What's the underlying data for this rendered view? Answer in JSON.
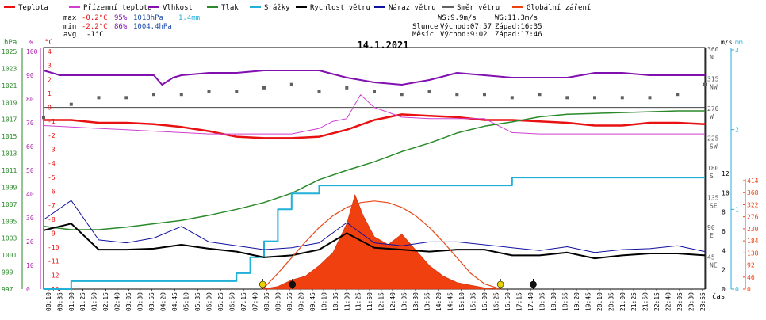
{
  "chart_data": {
    "type": "line",
    "title": "14.1.2021",
    "legend": [
      {
        "label": "Teplota",
        "color": "#e81010"
      },
      {
        "label": "Přízemní teplota",
        "color": "#d040d0"
      },
      {
        "label": "Vlhkost",
        "color": "#8010b0"
      },
      {
        "label": "Tlak",
        "color": "#2a8a2a"
      },
      {
        "label": "Srážky",
        "color": "#20b0d8"
      },
      {
        "label": "Rychlost větru",
        "color": "#000000"
      },
      {
        "label": "Náraz větru",
        "color": "#1010a0"
      },
      {
        "label": "Směr větru",
        "color": "#606060"
      },
      {
        "label": "Globální záření",
        "color": "#f04010"
      }
    ],
    "stats": {
      "max": {
        "label": "max",
        "temp": "-0.2°C",
        "hum": "95%",
        "press": "1018hPa",
        "rain": "1.4mm"
      },
      "min": {
        "label": "min",
        "temp": "-2.2°C",
        "hum": "86%",
        "press": "1004.4hPa"
      },
      "avg": {
        "label": "avg",
        "temp": "-1°C"
      },
      "wind": {
        "ws": "WS:9.9m/s",
        "wg": "WG:11.3m/s"
      },
      "sun": {
        "label": "Slunce",
        "rise": "Východ:07:57",
        "set": "Západ:16:35"
      },
      "moon": {
        "label": "Měsíc",
        "rise": "Východ:9:02",
        "set": "Západ:17:46"
      }
    },
    "axes": {
      "hpa": {
        "unit": "hPa",
        "ticks": [
          "1025",
          "1023",
          "1021",
          "1019",
          "1017",
          "1015",
          "1013",
          "1011",
          "1009",
          "1007",
          "1005",
          "1003",
          "1001",
          "999",
          "997"
        ],
        "range": [
          997,
          1025
        ]
      },
      "pct": {
        "unit": "%",
        "ticks": [
          "100",
          "90",
          "80",
          "70",
          "60",
          "50",
          "40",
          "30",
          "20",
          "10",
          "0"
        ],
        "range": [
          0,
          100
        ]
      },
      "temp": {
        "unit": "°C",
        "ticks": [
          "4",
          "3",
          "2",
          "1",
          "0",
          "-1",
          "-2",
          "-3",
          "-4",
          "-5",
          "-6",
          "-7",
          "-8",
          "-9",
          "-10",
          "-11",
          "-12",
          "-13"
        ],
        "range": [
          -13,
          4
        ]
      },
      "dir": {
        "unit": "°",
        "ticks": [
          "360",
          "315",
          "270",
          "225",
          "180",
          "135",
          "90",
          "45"
        ],
        "labels": [
          "N",
          "NW",
          "W",
          "SW",
          "S",
          "SE",
          "E",
          "NE"
        ],
        "range": [
          0,
          360
        ]
      },
      "ms": {
        "unit": "m/s",
        "ticks": [
          "12",
          "10",
          "8",
          "6",
          "4",
          "2",
          "0"
        ],
        "range": [
          0,
          12
        ]
      },
      "mm": {
        "unit": "mm",
        "ticks": [
          "3",
          "2",
          "1",
          "0"
        ],
        "range": [
          0,
          3
        ]
      },
      "wm2": {
        "ticks": [
          "414",
          "368",
          "322",
          "276",
          "230",
          "184",
          "138",
          "92",
          "46",
          "0"
        ],
        "range": [
          0,
          414
        ]
      },
      "x_unit": "čas",
      "x_ticks": [
        "00:10",
        "00:35",
        "01:00",
        "01:25",
        "01:50",
        "02:15",
        "02:40",
        "03:05",
        "03:30",
        "03:55",
        "04:20",
        "04:45",
        "05:10",
        "05:35",
        "06:00",
        "06:25",
        "06:50",
        "07:15",
        "07:40",
        "08:05",
        "08:30",
        "08:55",
        "09:20",
        "09:45",
        "10:10",
        "10:35",
        "11:00",
        "11:25",
        "11:50",
        "12:15",
        "12:40",
        "13:05",
        "13:30",
        "13:55",
        "14:20",
        "14:45",
        "15:10",
        "15:35",
        "16:00",
        "16:25",
        "16:50",
        "17:15",
        "17:40",
        "18:05",
        "18:30",
        "18:55",
        "19:20",
        "19:45",
        "20:10",
        "20:35",
        "21:00",
        "21:25",
        "21:50",
        "22:15",
        "22:40",
        "23:05",
        "23:30",
        "23:55"
      ]
    },
    "series": [
      {
        "name": "Teplota",
        "unit": "°C",
        "t": [
          0,
          1,
          2,
          3,
          4,
          5,
          6,
          7,
          8,
          9,
          10,
          11,
          12,
          13,
          14,
          15,
          16,
          17,
          18,
          19,
          20,
          21,
          22,
          23,
          24
        ],
        "values": [
          -0.9,
          -0.9,
          -1.1,
          -1.1,
          -1.2,
          -1.4,
          -1.7,
          -2.1,
          -2.2,
          -2.2,
          -2.1,
          -1.6,
          -0.9,
          -0.5,
          -0.6,
          -0.7,
          -0.9,
          -0.9,
          -1.0,
          -1.1,
          -1.3,
          -1.3,
          -1.1,
          -1.1,
          -1.2
        ]
      },
      {
        "name": "Přízemní teplota",
        "unit": "°C",
        "t": [
          0,
          1,
          2,
          3,
          4,
          5,
          6,
          7,
          8,
          9,
          10,
          10.5,
          11,
          11.5,
          12,
          13,
          14,
          15,
          16,
          17,
          18,
          19,
          20,
          21,
          22,
          23,
          24
        ],
        "values": [
          -1.3,
          -1.4,
          -1.5,
          -1.6,
          -1.7,
          -1.8,
          -1.9,
          -1.9,
          -1.9,
          -1.9,
          -1.5,
          -1.0,
          -0.8,
          0.9,
          0.0,
          -0.7,
          -0.8,
          -0.8,
          -0.8,
          -1.8,
          -1.9,
          -1.9,
          -1.9,
          -1.9,
          -1.9,
          -1.9,
          -1.9
        ]
      },
      {
        "name": "Vlhkost",
        "unit": "%",
        "t": [
          0,
          0.6,
          1,
          2,
          3,
          4,
          4.3,
          4.7,
          5,
          6,
          7,
          8,
          9,
          10,
          11,
          12,
          13,
          14,
          15,
          16,
          17,
          18,
          19,
          20,
          21,
          22,
          23,
          24
        ],
        "values": [
          92,
          90,
          90,
          90,
          90,
          90,
          86,
          89,
          90,
          91,
          91,
          92,
          92,
          92,
          89,
          87,
          86,
          88,
          91,
          90,
          89,
          89,
          89,
          91,
          91,
          90,
          90,
          90
        ]
      },
      {
        "name": "Tlak",
        "unit": "hPa",
        "t": [
          0,
          1,
          2,
          3,
          4,
          5,
          6,
          7,
          8,
          9,
          10,
          11,
          12,
          13,
          14,
          15,
          16,
          17,
          18,
          19,
          20,
          21,
          22,
          23,
          24
        ],
        "values": [
          1004.4,
          1004.0,
          1004.0,
          1004.3,
          1004.7,
          1005.1,
          1005.7,
          1006.4,
          1007.2,
          1008.3,
          1009.9,
          1011.0,
          1012.0,
          1013.2,
          1014.2,
          1015.4,
          1016.2,
          1016.7,
          1017.3,
          1017.6,
          1017.7,
          1017.8,
          1017.9,
          1018.0,
          1018.0
        ]
      },
      {
        "name": "Srážky",
        "unit": "mm",
        "t": [
          0,
          1,
          2,
          3,
          4,
          5,
          6,
          7,
          7.5,
          8,
          8.5,
          9,
          10,
          14,
          15,
          16,
          17,
          18,
          24
        ],
        "values": [
          0,
          0.1,
          0.1,
          0.1,
          0.1,
          0.1,
          0.1,
          0.2,
          0.4,
          0.6,
          1.0,
          1.2,
          1.3,
          1.3,
          1.3,
          1.3,
          1.4,
          1.4,
          1.4
        ]
      },
      {
        "name": "Rychlost větru",
        "unit": "m/s",
        "t": [
          0,
          1,
          2,
          3,
          4,
          5,
          6,
          7,
          8,
          9,
          10,
          11,
          12,
          13,
          14,
          15,
          16,
          17,
          18,
          19,
          20,
          21,
          22,
          23,
          24
        ],
        "values": [
          6.1,
          6.8,
          4.1,
          4.1,
          4.2,
          4.6,
          4.2,
          3.9,
          3.3,
          3.5,
          4.1,
          5.8,
          4.3,
          4.1,
          3.9,
          4.1,
          4.1,
          3.5,
          3.5,
          3.8,
          3.2,
          3.5,
          3.7,
          3.7,
          3.5
        ]
      },
      {
        "name": "Náraz větru",
        "unit": "m/s",
        "t": [
          0,
          1,
          2,
          3,
          4,
          5,
          6,
          7,
          8,
          9,
          10,
          11,
          12,
          13,
          14,
          15,
          16,
          17,
          18,
          19,
          20,
          21,
          22,
          23,
          24
        ],
        "values": [
          7.2,
          9.2,
          5.1,
          4.8,
          5.3,
          6.5,
          4.9,
          4.5,
          4.1,
          4.3,
          4.8,
          6.9,
          4.8,
          4.5,
          4.9,
          4.9,
          4.6,
          4.3,
          4.0,
          4.4,
          3.8,
          4.1,
          4.2,
          4.5,
          3.9
        ]
      },
      {
        "name": "Směr větru",
        "unit": "°",
        "t": [
          0,
          1,
          2,
          3,
          4,
          5,
          6,
          7,
          8,
          9,
          10,
          11,
          12,
          13,
          14,
          15,
          16,
          17,
          18,
          19,
          20,
          21,
          22,
          23,
          24
        ],
        "values": [
          260,
          280,
          290,
          290,
          295,
          295,
          300,
          300,
          305,
          310,
          300,
          305,
          300,
          295,
          300,
          295,
          295,
          290,
          295,
          290,
          290,
          290,
          290,
          295,
          310
        ]
      },
      {
        "name": "Globální záření",
        "unit": "W/m²",
        "t": [
          7.9,
          8.5,
          9,
          9.5,
          10,
          10.5,
          11,
          11.3,
          11.6,
          12,
          12.5,
          13,
          13.5,
          14,
          14.5,
          15,
          15.5,
          16,
          16.6
        ],
        "values": [
          0,
          10,
          35,
          50,
          90,
          140,
          250,
          360,
          280,
          200,
          170,
          210,
          150,
          90,
          50,
          25,
          15,
          5,
          0
        ]
      },
      {
        "name": "Teoretické záření",
        "unit": "W/m²",
        "t": [
          7.95,
          8.5,
          9,
          9.5,
          10,
          10.5,
          11,
          11.5,
          12,
          12.5,
          13,
          13.5,
          14,
          14.5,
          15,
          15.5,
          16,
          16.59
        ],
        "values": [
          0,
          60,
          120,
          180,
          235,
          280,
          312,
          330,
          336,
          330,
          312,
          280,
          235,
          180,
          120,
          60,
          20,
          0
        ]
      }
    ],
    "events": [
      {
        "t": 7.95,
        "type": "sunrise",
        "color": "#e8d200"
      },
      {
        "t": 9.03,
        "type": "moonrise",
        "color": "#111111"
      },
      {
        "t": 16.58,
        "type": "sunset",
        "color": "#e8d200"
      },
      {
        "t": 17.77,
        "type": "moonset",
        "color": "#111111"
      }
    ]
  }
}
